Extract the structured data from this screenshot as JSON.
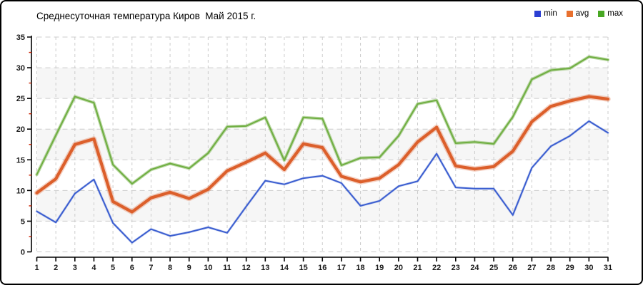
{
  "title": "Среднесуточная температура Киров  Май 2015 г.",
  "legend": {
    "position": "top-right",
    "items": [
      {
        "label": "min",
        "color": "#2b3fd3"
      },
      {
        "label": "avg",
        "color": "#e8702e"
      },
      {
        "label": "max",
        "color": "#48a823"
      }
    ]
  },
  "colors": {
    "background": "#ffffff",
    "border": "#000000",
    "grid": "#cccccc",
    "band": "#f6f6f6",
    "axis": "#000000",
    "minor_tick": "#cc2200",
    "min_line": "#3b5ed0",
    "avg_line": "#dc5f2b",
    "max_line": "#6fae41"
  },
  "chart_data": {
    "type": "line",
    "title": "Среднесуточная температура Киров  Май 2015 г.",
    "xlabel": "",
    "ylabel": "",
    "x": [
      1,
      2,
      3,
      4,
      5,
      6,
      7,
      8,
      9,
      10,
      11,
      12,
      13,
      14,
      15,
      16,
      17,
      18,
      19,
      20,
      21,
      22,
      23,
      24,
      25,
      26,
      27,
      28,
      29,
      30,
      31
    ],
    "series": [
      {
        "name": "min",
        "color": "#3b5ed0",
        "values": [
          6.6,
          4.8,
          9.5,
          11.8,
          4.7,
          1.5,
          3.7,
          2.6,
          3.2,
          4.0,
          3.1,
          7.4,
          11.6,
          11.0,
          12.0,
          12.4,
          11.2,
          7.5,
          8.3,
          10.7,
          11.5,
          16.0,
          10.5,
          10.3,
          10.3,
          6.0,
          13.7,
          17.2,
          18.9,
          21.3,
          19.4
        ]
      },
      {
        "name": "avg",
        "color": "#dc5f2b",
        "values": [
          9.6,
          11.9,
          17.5,
          18.4,
          8.2,
          6.5,
          8.8,
          9.7,
          8.7,
          10.2,
          13.2,
          14.6,
          16.1,
          13.4,
          17.6,
          17.0,
          12.3,
          11.4,
          12.0,
          14.2,
          17.9,
          20.3,
          14.0,
          13.5,
          13.9,
          16.4,
          21.2,
          23.7,
          24.6,
          25.3,
          24.9
        ]
      },
      {
        "name": "max",
        "color": "#6fae41",
        "values": [
          12.6,
          19.0,
          25.3,
          24.3,
          14.2,
          11.1,
          13.4,
          14.4,
          13.6,
          16.1,
          20.4,
          20.5,
          21.9,
          14.9,
          21.9,
          21.7,
          14.1,
          15.3,
          15.4,
          18.9,
          24.1,
          24.7,
          17.7,
          17.9,
          17.6,
          22.0,
          28.1,
          29.6,
          29.9,
          31.8,
          31.3
        ]
      }
    ],
    "xlim": [
      1,
      31
    ],
    "ylim": [
      0,
      35
    ],
    "y_ticks": [
      0,
      5,
      10,
      15,
      20,
      25,
      30,
      35
    ],
    "y_minor_ticks": [
      2.5,
      7.5,
      12.5,
      17.5,
      22.5,
      27.5,
      32.5
    ],
    "band_rows": [
      [
        5,
        10
      ],
      [
        15,
        20
      ],
      [
        25,
        30
      ]
    ],
    "grid": true,
    "legend_position": "top-right"
  }
}
